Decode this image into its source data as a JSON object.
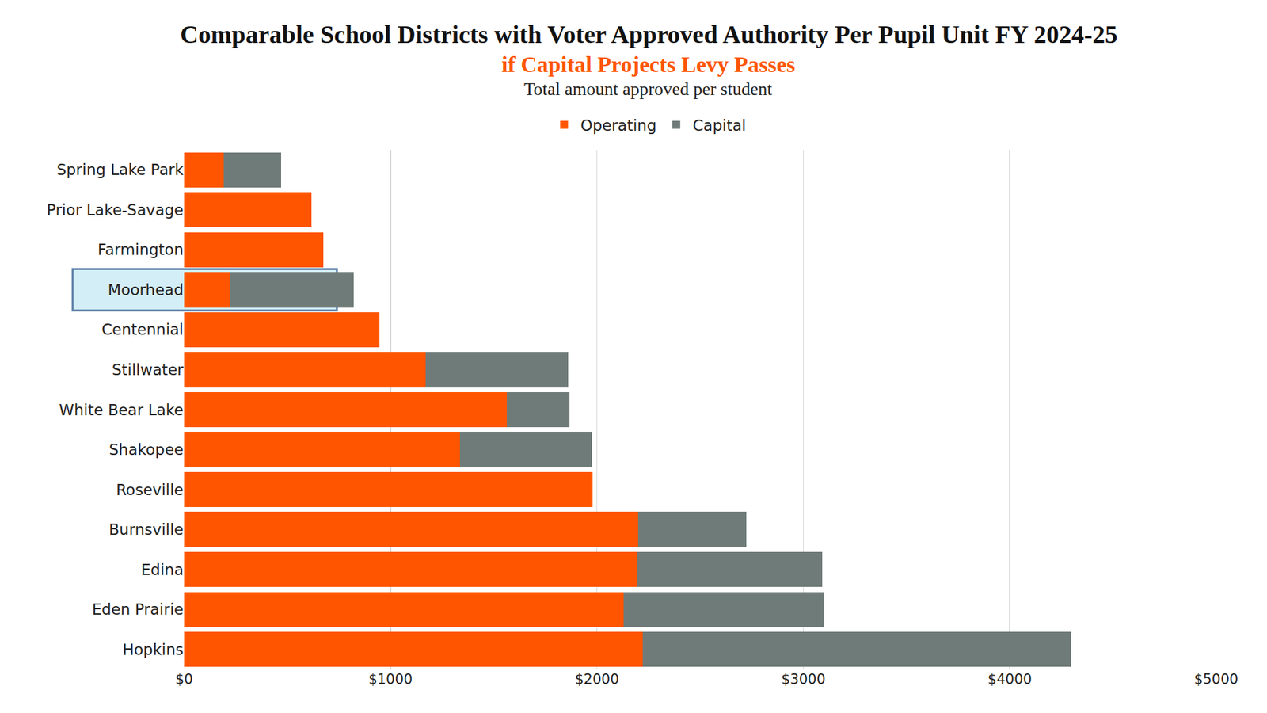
{
  "chart_data": {
    "type": "bar",
    "title": "Comparable School Districts with Voter Approved Authority Per Pupil Unit FY 2024-25",
    "subtitle": "if Capital Projects Levy Passes",
    "annotations": [
      {
        "text": "Total amount approved per student"
      }
    ],
    "orientation": "horizontal",
    "stacked": true,
    "categories": [
      "Spring Lake Park",
      "Prior Lake-Savage",
      "Farmington",
      "Moorhead",
      "Centennial",
      "Stillwater",
      "White Bear Lake",
      "Shakopee",
      "Roseville",
      "Burnsville",
      "Edina",
      "Eden Prairie",
      "Hopkins"
    ],
    "series": [
      {
        "name": "Operating",
        "color": "#ff5500",
        "values": [
          192,
          618,
          673,
          223,
          947,
          1170,
          1562,
          1335,
          1980,
          2200,
          2196,
          2129,
          2223
        ]
      },
      {
        "name": "Capital",
        "color": "#6f7b78",
        "values": [
          278,
          0,
          0,
          599,
          0,
          689,
          305,
          642,
          0,
          524,
          896,
          971,
          2074
        ]
      }
    ],
    "xlim": [
      0,
      5000
    ],
    "xticks": [
      {
        "value": 0,
        "label": "$0"
      },
      {
        "value": 1000,
        "label": "$1000"
      },
      {
        "value": 2000,
        "label": "$2000"
      },
      {
        "value": 3000,
        "label": "$3000"
      },
      {
        "value": 4000,
        "label": "$4000"
      },
      {
        "value": 5000,
        "label": "$5000"
      }
    ],
    "grid": true,
    "legend": "top"
  }
}
